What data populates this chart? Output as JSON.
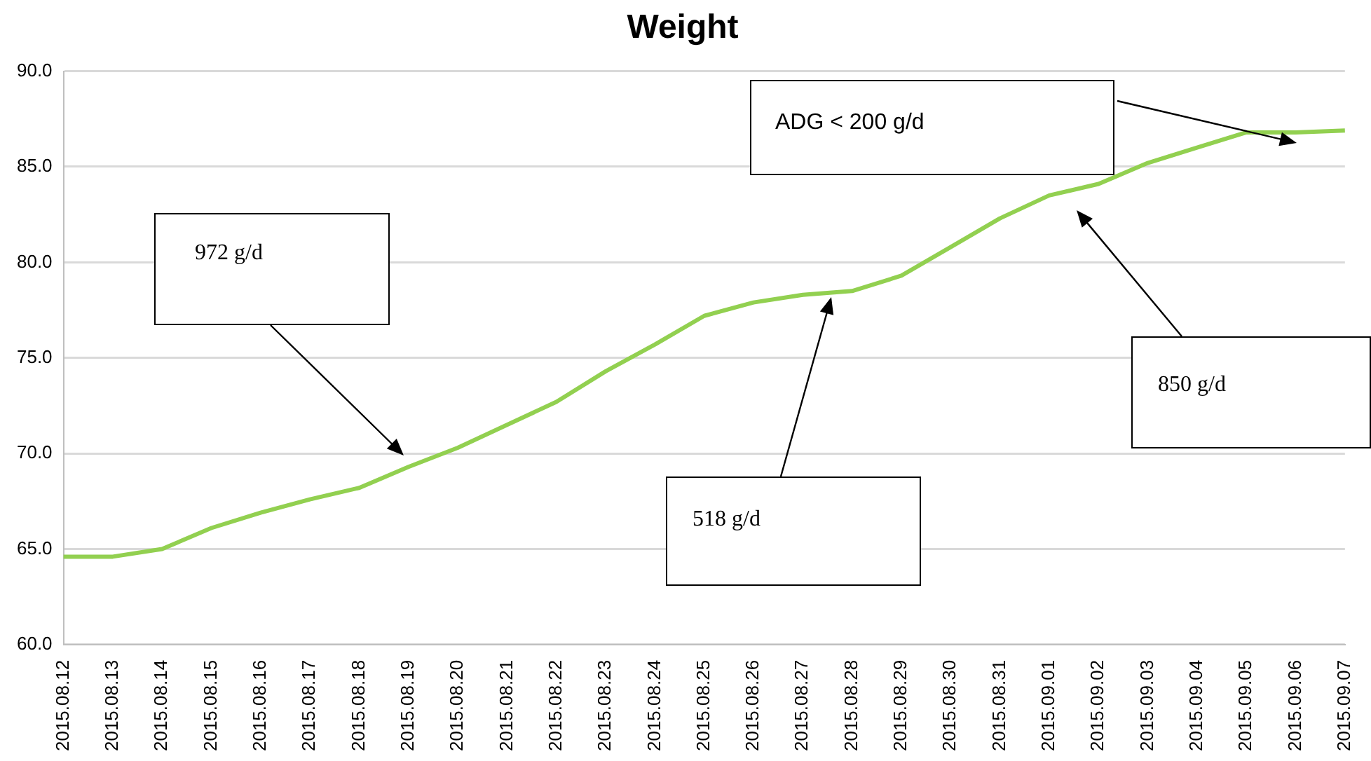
{
  "chart_data": {
    "type": "line",
    "title": "Weight",
    "categories": [
      "2015.08.12",
      "2015.08.13",
      "2015.08.14",
      "2015.08.15",
      "2015.08.16",
      "2015.08.17",
      "2015.08.18",
      "2015.08.19",
      "2015.08.20",
      "2015.08.21",
      "2015.08.22",
      "2015.08.23",
      "2015.08.24",
      "2015.08.25",
      "2015.08.26",
      "2015.08.27",
      "2015.08.28",
      "2015.08.29",
      "2015.08.30",
      "2015.08.31",
      "2015.09.01",
      "2015.09.02",
      "2015.09.03",
      "2015.09.04",
      "2015.09.05",
      "2015.09.06",
      "2015.09.07"
    ],
    "series": [
      {
        "color": "#92d050",
        "values": [
          64.6,
          64.6,
          65.0,
          66.1,
          66.9,
          67.6,
          68.2,
          69.3,
          70.3,
          71.5,
          72.7,
          74.3,
          75.7,
          77.2,
          77.9,
          78.3,
          78.5,
          79.3,
          80.8,
          82.3,
          83.5,
          84.1,
          85.2,
          86.0,
          86.8,
          86.8,
          86.9
        ]
      }
    ],
    "ylim": [
      60,
      90
    ],
    "yticks": [
      {
        "value": 60,
        "label": "60.0"
      },
      {
        "value": 65,
        "label": "65.0"
      },
      {
        "value": 70,
        "label": "70.0"
      },
      {
        "value": 75,
        "label": "75.0"
      },
      {
        "value": 80,
        "label": "80.0"
      },
      {
        "value": 85,
        "label": "85.0"
      },
      {
        "value": 90,
        "label": "90.0"
      }
    ],
    "grid": "y",
    "legend": false,
    "marker": "none",
    "line_style": "solid",
    "annotations": [
      "972 g/d",
      "518 g/d",
      "850 g/d",
      "ADG < 200 g/d"
    ]
  }
}
